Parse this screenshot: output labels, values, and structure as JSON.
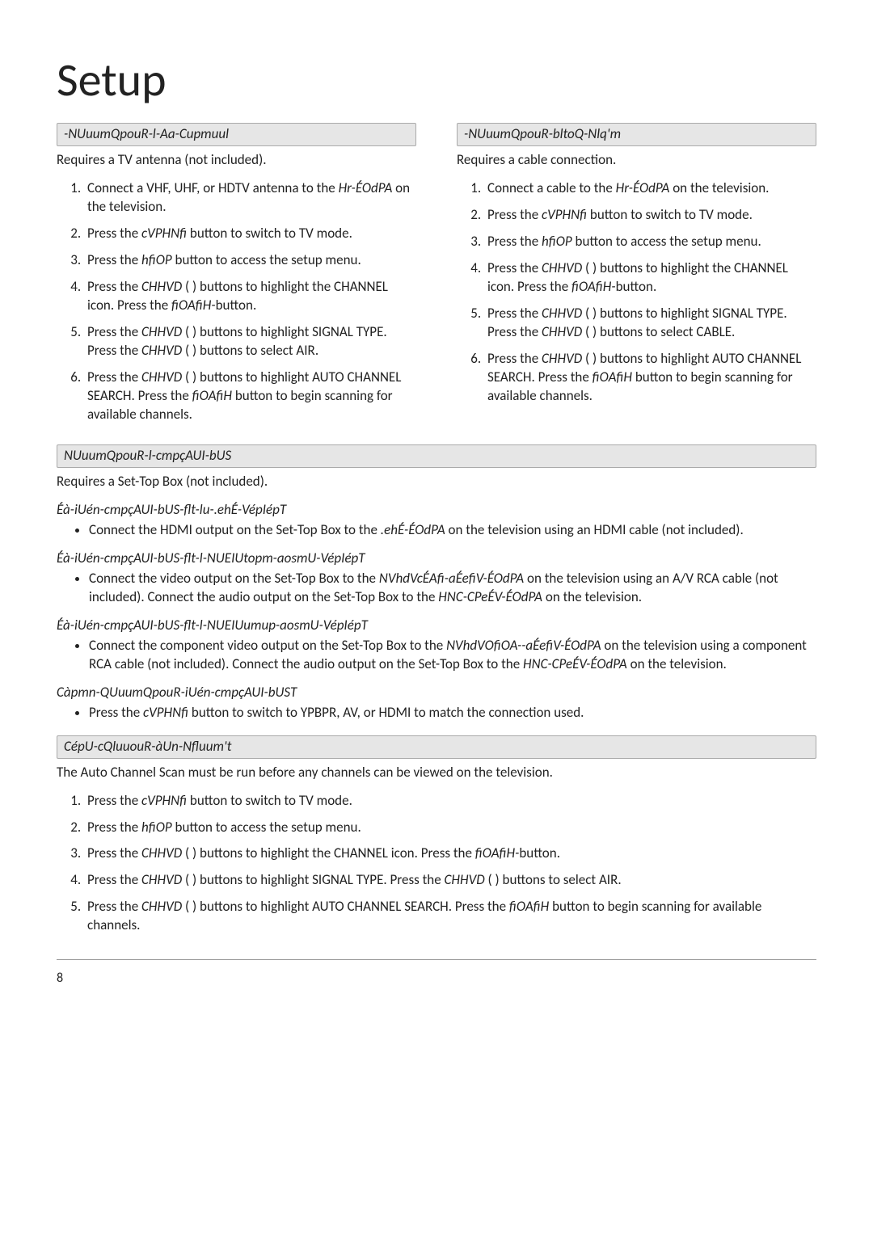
{
  "page": {
    "title": "Setup",
    "number": "8"
  },
  "antenna": {
    "header": "-NUuumQpouR-l-Aa-Cupmuul",
    "lead": "Requires a TV antenna (not included).",
    "steps": [
      {
        "pre": "Connect a VHF, UHF, or HDTV antenna to the ",
        "em": "Hr-ÉOdPA",
        "post": " on the television."
      },
      {
        "pre": "Press the ",
        "em": "cVPHNfi",
        "post": "  button to switch to TV mode."
      },
      {
        "pre": "Press the ",
        "em": "hfiOP",
        "post": "  button to access the setup menu."
      },
      {
        "pre": "Press the ",
        "em": "CHHVD",
        "post": "  (         ) buttons to highlight the CHANNEL icon. Press the ",
        "em2": "fiOAfiH-",
        "post2": "button."
      },
      {
        "pre": "Press the ",
        "em": "CHHVD",
        "post": "  (         ) buttons to highlight SIGNAL TYPE. Press the ",
        "em2": "CHHVD",
        "post2": "  (         ) buttons to select AIR."
      },
      {
        "pre": "Press the ",
        "em": "CHHVD",
        "post": "  (         ) buttons to highlight AUTO CHANNEL SEARCH. Press the ",
        "em2": "fiOAfiH",
        "post2": " button to begin scanning for available channels."
      }
    ]
  },
  "cable": {
    "header": "-NUuumQpouR-bltoQ-Nlq'm",
    "lead": "Requires a cable connection.",
    "steps": [
      {
        "pre": "Connect a cable to the ",
        "em": "Hr-ÉOdPA",
        "post": "  on the television."
      },
      {
        "pre": "Press the ",
        "em": "cVPHNfi",
        "post": "  button to switch to TV mode."
      },
      {
        "pre": "Press the ",
        "em": "hfiOP",
        "post": "  button to access the setup menu."
      },
      {
        "pre": "Press the ",
        "em": "CHHVD",
        "post": "  (         ) buttons to highlight the CHANNEL icon. Press the ",
        "em2": "fiOAfiH-",
        "post2": "button."
      },
      {
        "pre": "Press the ",
        "em": "CHHVD",
        "post": "  (         ) buttons to highlight SIGNAL TYPE. Press the ",
        "em2": "CHHVD",
        "post2": "  (         ) buttons to select CABLE."
      },
      {
        "pre": "Press the ",
        "em": "CHHVD",
        "post": "  (         ) buttons to highlight AUTO CHANNEL SEARCH. Press the ",
        "em2": "fiOAfiH",
        "post2": " button to begin scanning for available channels."
      }
    ]
  },
  "stb": {
    "header": "NUuumQpouR-l-cmpçAUI-bUS",
    "lead": "Requires a Set-Top Box (not included).",
    "sub1_head": "Éà-iUén-cmpçAUI-bUS-flt-lu-.ehÉ-VépIépT",
    "sub1_pre": "Connect the HDMI output on the Set-Top Box to the ",
    "sub1_em": ".ehÉ-ÉOdPA",
    "sub1_post": "   on the television using an HDMI cable (not included).",
    "sub2_head": "Éà-iUén-cmpçAUI-bUS-flt-l-NUEIUtopm-aosmU-VépIépT",
    "sub2_pre": "Connect the video output on the Set-Top Box to the ",
    "sub2_em": "NVhdVcÉAfi-aÉefiV-ÉOdPA",
    "sub2_mid": "   on the television using an A/V RCA cable (not included). Connect the audio output on the Set-Top Box to the ",
    "sub2_em2": "HNC-CPeÉV-ÉOdPA",
    "sub2_post": " on the television.",
    "sub3_head": "Éà-iUén-cmpçAUI-bUS-flt-l-NUEIUumup-aosmU-VépIépT",
    "sub3_pre": "Connect the component video output on the Set-Top Box to the ",
    "sub3_em": "NVhdVOfiOA--aÉefiV-ÉOdPA",
    "sub3_mid": "   on the television using a component RCA cable (not included). Connect the audio output on the Set-Top Box to the ",
    "sub3_em2": "HNC-CPeÉV-ÉOdPA",
    "sub3_post": "  on the television.",
    "sub4_head": "Càpmn-QUuumQpouR-iUén-cmpçAUI-bUST",
    "sub4_pre": "Press the ",
    "sub4_em": "cVPHNfi",
    "sub4_post": "  button to switch to  YPBPR, AV, or HDMI to match the connection used."
  },
  "auto": {
    "header": "CépU-cQluuouR-àUn-Nfluum't",
    "lead": "The Auto Channel Scan must be run before any channels can be viewed on the television.",
    "steps": [
      {
        "pre": "Press the ",
        "em": "cVPHNfi",
        "post": "  button to switch to TV mode."
      },
      {
        "pre": "Press the ",
        "em": "hfiOP",
        "post": "  button to access the setup menu."
      },
      {
        "pre": "Press the ",
        "em": "CHHVD",
        "post": "  (         ) buttons to highlight the CHANNEL icon. Press the ",
        "em2": "fiOAfiH-",
        "post2": "button."
      },
      {
        "pre": "Press the ",
        "em": "CHHVD",
        "post": "  (         ) buttons to highlight SIGNAL TYPE. Press the ",
        "em2": "CHHVD",
        "post2": "  (         ) buttons to select AIR."
      },
      {
        "pre": "Press the ",
        "em": "CHHVD",
        "post": "  (         ) buttons to highlight AUTO CHANNEL SEARCH. Press the ",
        "em2": "fiOAfiH",
        "post2": " button to begin scanning for available channels."
      }
    ]
  }
}
